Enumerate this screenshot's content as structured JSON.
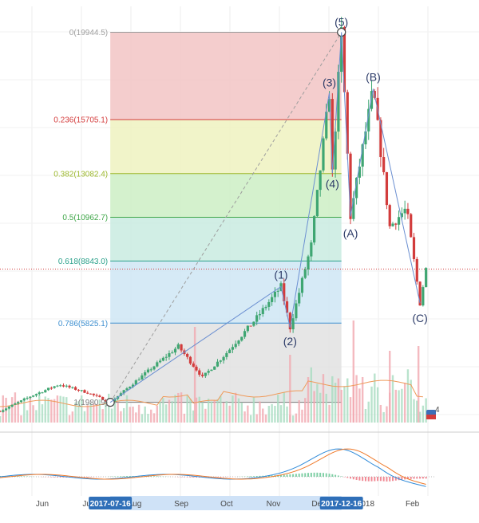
{
  "chart_data": {
    "type": "candlestick",
    "fib_levels": [
      {
        "ratio": "0",
        "price": 19944.5,
        "label": "0(19944.5)",
        "color": "#9e9e9e",
        "fill": "#f2c4c4"
      },
      {
        "ratio": "0.236",
        "price": 15705.1,
        "label": "0.236(15705.1)",
        "color": "#d43c3c",
        "fill": "#eef2c0"
      },
      {
        "ratio": "0.382",
        "price": 13082.4,
        "label": "0.382(13082.4)",
        "color": "#9cb82c",
        "fill": "#cdeec4"
      },
      {
        "ratio": "0.5",
        "price": 10962.7,
        "label": "0.5(10962.7)",
        "color": "#3fa648",
        "fill": "#c9ebe1"
      },
      {
        "ratio": "0.618",
        "price": 8843.0,
        "label": "0.618(8843.0)",
        "color": "#2aa08a",
        "fill": "#cfe6f5"
      },
      {
        "ratio": "0.786",
        "price": 5825.1,
        "label": "0.786(5825.1)",
        "color": "#3d8fd0",
        "fill": "#e2e2e2"
      },
      {
        "ratio": "1",
        "price": 1980.9,
        "label": "1(1980.9)",
        "color": "#7a7a7a",
        "fill": null
      }
    ],
    "wave_points": [
      {
        "label": "(1)",
        "date": "2017-11-06",
        "price": 7600
      },
      {
        "label": "(2)",
        "date": "2017-11-12",
        "price": 5600
      },
      {
        "label": "(3)",
        "date": "2017-12-08",
        "price": 17000
      },
      {
        "label": "(4)",
        "date": "2017-12-10",
        "price": 13100
      },
      {
        "label": "(5)",
        "date": "2017-12-16",
        "price": 19944.5
      },
      {
        "label": "(A)",
        "date": "2017-12-22",
        "price": 11000
      },
      {
        "label": "(B)",
        "date": "2018-01-06",
        "price": 17200
      },
      {
        "label": "(C)",
        "date": "2018-02-06",
        "price": 6800
      }
    ],
    "x_ticks": [
      "Jun",
      "Jul",
      "Aug",
      "Sep",
      "Oct",
      "Nov",
      "Dec",
      "2018",
      "Feb"
    ],
    "highlighted_dates": [
      "2017-07-16",
      "2017-12-16"
    ],
    "current_price": 8450,
    "legend_badge": "4",
    "x_range": [
      "2017-05-04",
      "2018-02-16"
    ],
    "y_range": [
      1000,
      21200
    ],
    "grid": true,
    "colors": {
      "up": "#3fa672",
      "down": "#d23c3c",
      "wave": "#6b8fd1",
      "trend": "#9e9e9e",
      "macd": "#2f8ad8",
      "signal": "#ef7a2b",
      "volume_up": "#a8dcc0",
      "volume_down": "#f1a9b0"
    }
  }
}
